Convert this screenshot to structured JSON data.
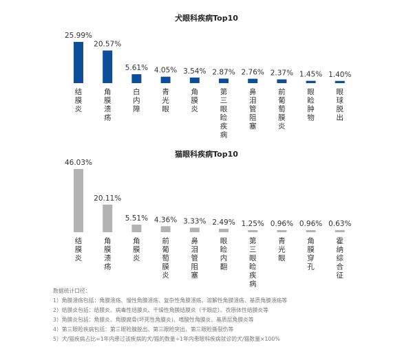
{
  "chart_data": [
    {
      "type": "bar",
      "title": "犬眼科疾病Top10",
      "color": "#0d4e9a",
      "categories": [
        "结膜炎",
        "角膜溃疡",
        "白内障",
        "青光眼",
        "角膜炎",
        "第三眼睑疾病",
        "鼻泪管阻塞",
        "前葡萄膜炎",
        "眼睑肿物",
        "眼球脱出"
      ],
      "values": [
        25.99,
        20.57,
        5.61,
        4.05,
        3.54,
        2.87,
        2.76,
        2.37,
        1.45,
        1.4
      ],
      "value_labels": [
        "25.99%",
        "20.57%",
        "5.61%",
        "4.05%",
        "3.54%",
        "2.87%",
        "2.76%",
        "2.37%",
        "1.45%",
        "1.40%"
      ],
      "xlabel": "",
      "ylabel": ""
    },
    {
      "type": "bar",
      "title": "猫眼科疾病Top10",
      "color": "#b3b3b3",
      "categories": [
        "结膜炎",
        "角膜溃疡",
        "角膜炎",
        "前葡萄膜炎",
        "鼻泪管阻塞",
        "眼睑内翻",
        "第三眼睑疾病",
        "青光眼",
        "角膜穿孔",
        "霍纳综合征"
      ],
      "values": [
        46.03,
        20.11,
        5.51,
        4.36,
        3.33,
        2.49,
        1.25,
        0.96,
        0.96,
        0.63
      ],
      "value_labels": [
        "46.03%",
        "20.11%",
        "5.51%",
        "4.36%",
        "3.33%",
        "2.49%",
        "1.25%",
        "0.96%",
        "0.96%",
        "0.63%"
      ],
      "xlabel": "",
      "ylabel": ""
    }
  ],
  "notes": {
    "heading": "数据统计口径：",
    "lines": [
      "1）角膜溃疡包括：角膜溃疡、慢性角膜溃疡、复杂性角膜溃疡、溶解性角膜溃疡、基质角膜溃疡等",
      "2）结膜炎包括：结膜炎、病毒性结膜炎、干燥性角膜结膜炎（干眼症）、衣原体性结膜炎等",
      "3）角膜炎包括：角膜炎、角膜腐骨(坏死性角膜炎)、嗜酸性角膜炎、基质层角膜炎等",
      "4）第三眼睑疾病包括：第三眼睑腺脱出、第三眼睑突出、第三眼睑撕裂伤等",
      "5）犬/猫疾病占比=1年内患过该疾病的犬/猫的数量÷1年内患眼科疾病就诊的犬/猫数量×100%"
    ]
  }
}
